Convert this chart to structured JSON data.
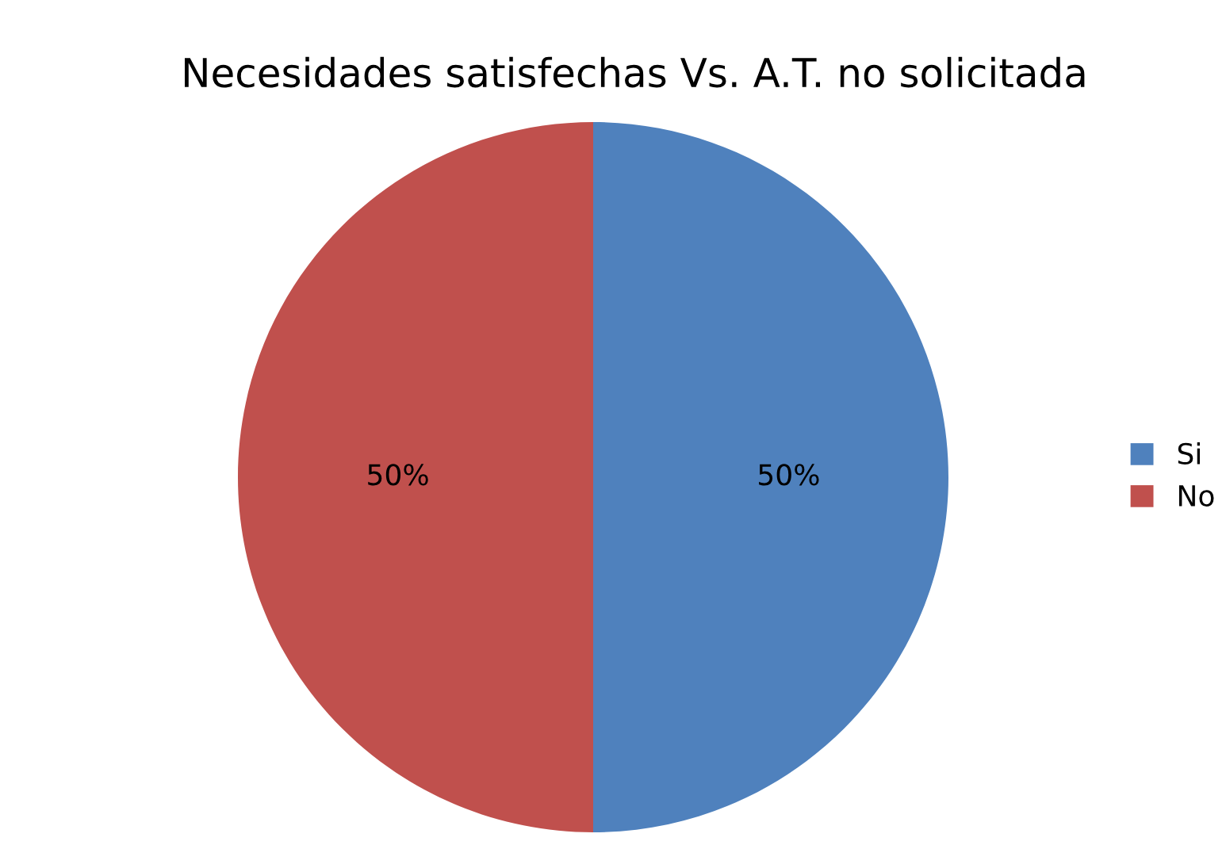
{
  "chart_data": {
    "type": "pie",
    "title": "Necesidades satisfechas Vs. A.T. no solicitada",
    "categories": [
      "Si",
      "No"
    ],
    "values": [
      50,
      50
    ],
    "colors": [
      "#4f81bd",
      "#c0504d"
    ],
    "value_labels": [
      "50%",
      "50%"
    ],
    "legend": "right"
  }
}
